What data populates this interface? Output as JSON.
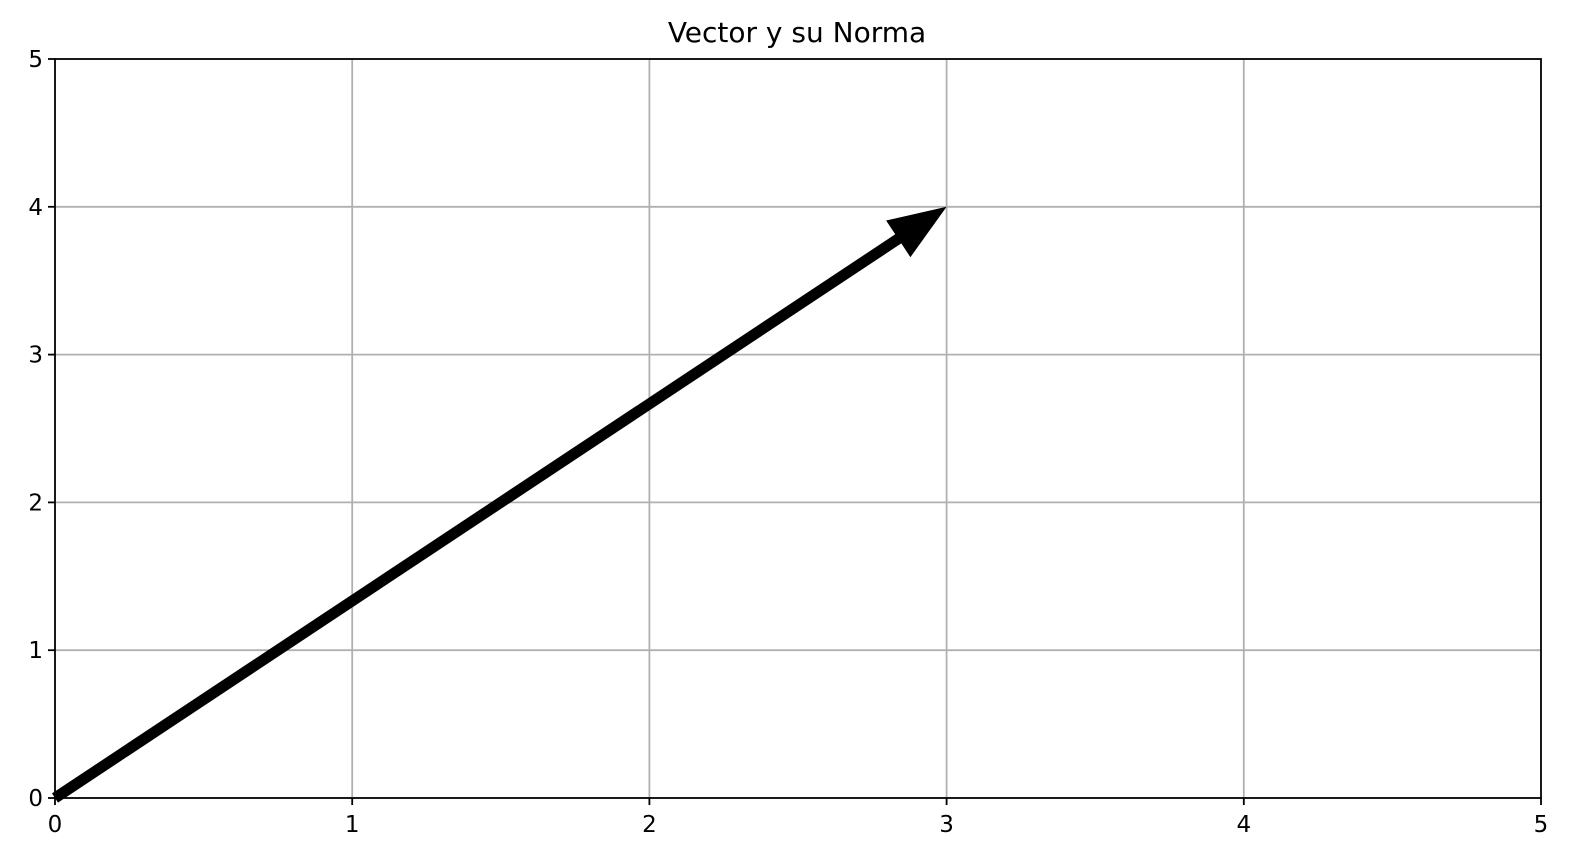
{
  "chart_data": {
    "type": "quiver",
    "title": "Vector y su Norma",
    "xlabel": "",
    "ylabel": "",
    "xlim": [
      0,
      5
    ],
    "ylim": [
      0,
      5
    ],
    "xticks": [
      0,
      1,
      2,
      3,
      4,
      5
    ],
    "yticks": [
      0,
      1,
      2,
      3,
      4,
      5
    ],
    "grid": true,
    "vectors": [
      {
        "origin": [
          0,
          0
        ],
        "components": [
          3,
          4
        ],
        "color": "#000000"
      }
    ]
  },
  "colors": {
    "grid": "#b0b0b0",
    "axes": "#000000",
    "vector": "#000000",
    "background": "#ffffff"
  }
}
